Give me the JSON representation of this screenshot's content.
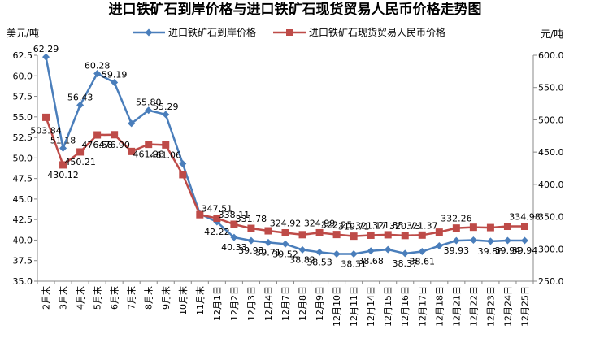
{
  "chart_data": {
    "type": "line",
    "title": "进口铁矿石到岸价格与进口铁矿石现货贸易人民币价格走势图",
    "left_axis_unit": "美元/吨",
    "right_axis_unit": "元/吨",
    "left_ylim": [
      35.0,
      62.5
    ],
    "left_ticks": [
      "35.0",
      "37.5",
      "40.0",
      "42.5",
      "45.0",
      "47.5",
      "50.0",
      "52.5",
      "55.0",
      "57.5",
      "60.0",
      "62.5"
    ],
    "right_ylim": [
      250.0,
      600.0
    ],
    "right_ticks": [
      "250.0",
      "300.0",
      "350.0",
      "400.0",
      "450.0",
      "500.0",
      "550.0",
      "600.0"
    ],
    "grid": false,
    "legend_position": "top",
    "categories": [
      "2月末",
      "3月末",
      "4月末",
      "5月末",
      "6月末",
      "7月末",
      "8月末",
      "9月末",
      "10月末",
      "11月末",
      "12月1日",
      "12月2日",
      "12月3日",
      "12月4日",
      "12月7日",
      "12月8日",
      "12月9日",
      "12月10日",
      "12月11日",
      "12月14日",
      "12月15日",
      "12月16日",
      "12月17日",
      "12月18日",
      "12月21日",
      "12月22日",
      "12月23日",
      "12月24日",
      "12月25日"
    ],
    "series": [
      {
        "name": "进口铁矿石到岸价格",
        "axis": "left",
        "color": "#4a7ebb",
        "marker": "diamond",
        "values": [
          62.29,
          51.18,
          56.43,
          60.28,
          59.19,
          54.2,
          55.8,
          55.29,
          49.3,
          43.2,
          42.22,
          40.33,
          39.93,
          39.71,
          39.52,
          38.82,
          38.53,
          38.31,
          38.31,
          38.68,
          38.85,
          38.37,
          38.61,
          39.3,
          39.93,
          40.0,
          39.86,
          39.94,
          39.94
        ],
        "labels": [
          "62.29",
          "51.18",
          "56.43",
          "60.28",
          "59.19",
          "",
          "55.80",
          "55.29",
          "",
          "",
          "42.22",
          "40.33",
          "39.93",
          "39.71",
          "39.52",
          "38.82",
          "38.53",
          "",
          "38.31",
          "38.68",
          "",
          "38.37",
          "38.61",
          "",
          "39.93",
          "",
          "39.86",
          "39.94",
          "39.94"
        ]
      },
      {
        "name": "进口铁矿石现货贸易人民币价格",
        "axis": "right",
        "color": "#be4b48",
        "marker": "square",
        "values": [
          503.84,
          430.12,
          450.21,
          476.58,
          476.9,
          451.0,
          461.98,
          461.06,
          415.0,
          353.0,
          347.51,
          338.11,
          331.78,
          328.0,
          324.92,
          322.0,
          324.99,
          322.25,
          319.71,
          321.17,
          321.85,
          320.73,
          321.37,
          326.0,
          332.26,
          333.5,
          333.0,
          334.98,
          334.98
        ],
        "labels": [
          "503.84",
          "430.12",
          "450.21",
          "476.58",
          "476.90",
          "",
          "461.98",
          "461.06",
          "",
          "",
          "347.51",
          "338.11",
          "331.78",
          "",
          "324.92",
          "",
          "324.99",
          "322.25",
          "319.71",
          "321.17",
          "321.85",
          "320.73",
          "321.37",
          "",
          "332.26",
          "",
          "",
          "",
          "334.98"
        ]
      }
    ]
  }
}
